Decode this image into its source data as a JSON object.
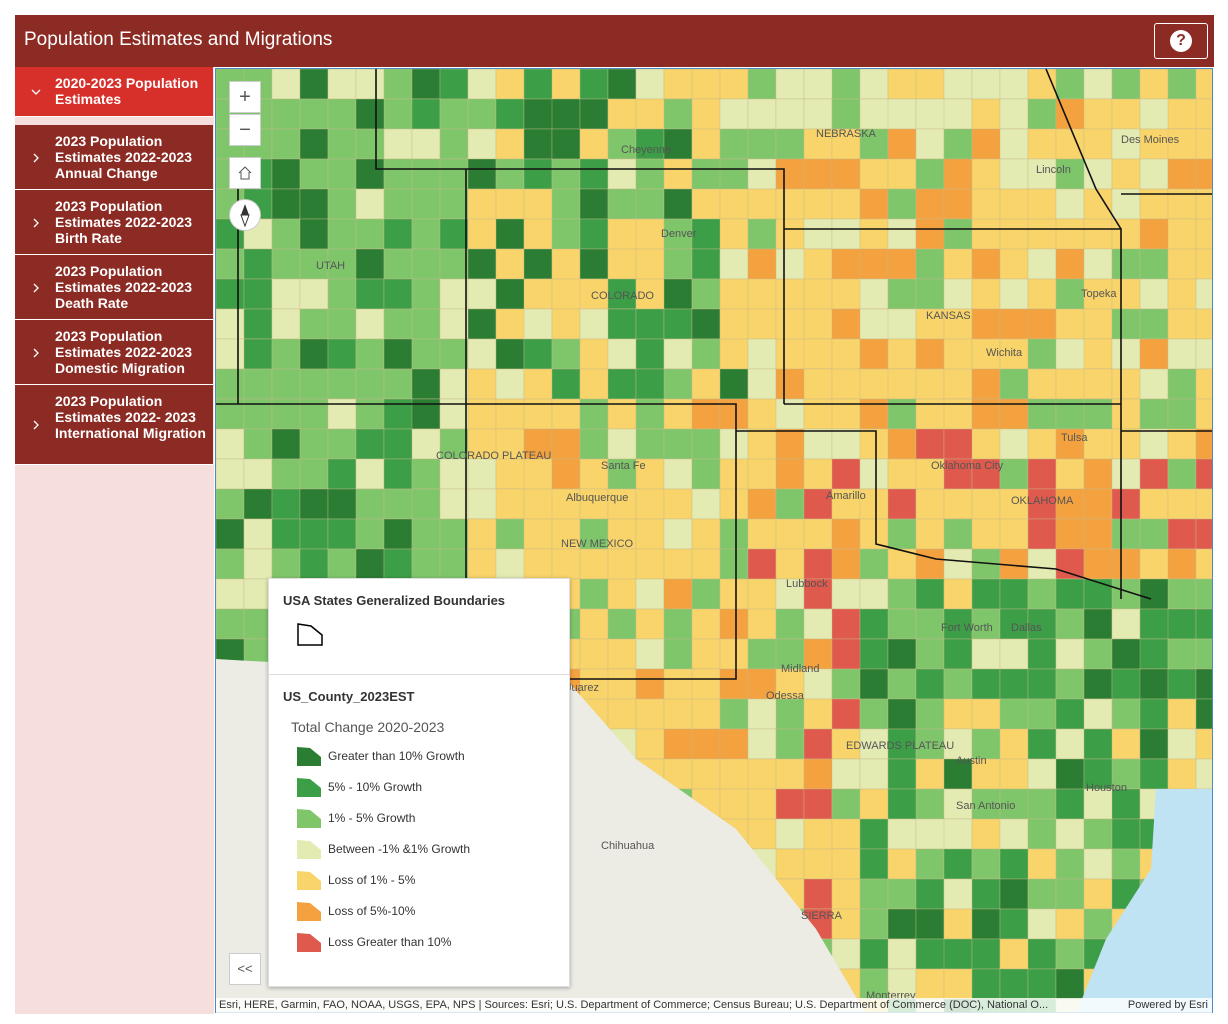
{
  "header": {
    "title": "Population Estimates and Migrations",
    "help": "?"
  },
  "nav": {
    "items": [
      "2020-2023 Population Estimates",
      "2023 Population Estimates 2022-2023 Annual Change",
      "2023 Population Estimates 2022-2023 Birth Rate",
      "2023 Population Estimates 2022-2023 Death Rate",
      "2023 Population Estimates 2022-2023 Domestic Migration",
      "2023 Population Estimates 2022- 2023 International Migration"
    ]
  },
  "map": {
    "zoom_in": "+",
    "zoom_out": "−",
    "labels": [
      "Cheyenne",
      "NEBRASKA",
      "Lincoln",
      "Des Moines",
      "Denver",
      "COLORADO",
      "KANSAS",
      "Topeka",
      "Wichita",
      "UTAH",
      "COLORADO PLATEAU",
      "Santa Fe",
      "Albuquerque",
      "NEW MEXICO",
      "Oklahoma City",
      "OKLAHOMA",
      "Tulsa",
      "Amarillo",
      "Lubbock",
      "Midland",
      "Odessa",
      "Fort Worth",
      "Dallas",
      "Austin",
      "San Antonio",
      "Houston",
      "Juarez",
      "Chihuahua",
      "EDWARDS PLATEAU",
      "SIERRA",
      "Monterrey"
    ]
  },
  "legend": {
    "boundaries_title": "USA States Generalized Boundaries",
    "county_title": "US_County_2023EST",
    "field": "Total Change 2020-2023",
    "classes": [
      {
        "label": "Greater than 10% Growth",
        "color": "#2a7d33"
      },
      {
        "label": "5% - 10% Growth",
        "color": "#3c9e47"
      },
      {
        "label": "1% - 5% Growth",
        "color": "#7fc66b"
      },
      {
        "label": "Between -1% &1% Growth",
        "color": "#e3eab2"
      },
      {
        "label": "Loss of 1% - 5%",
        "color": "#f8d46a"
      },
      {
        "label": "Loss of 5%-10%",
        "color": "#f3a23f"
      },
      {
        "label": "Loss Greater than 10%",
        "color": "#df5a4c"
      }
    ]
  },
  "collapse": "<<",
  "attribution": {
    "sources": "Esri, HERE, Garmin, FAO, NOAA, USGS, EPA, NPS | Sources: Esri; U.S. Department of Commerce; Census Bureau; U.S. Department of Commerce (DOC), National O...",
    "powered": "Powered by Esri"
  }
}
